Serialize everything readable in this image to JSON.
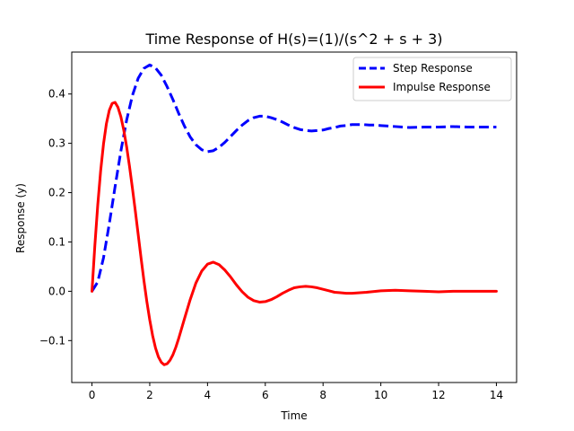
{
  "chart_data": {
    "type": "line",
    "title": "Time Response of H(s)=(1)/(s^2 + s + 3)",
    "xlabel": "Time",
    "ylabel": "Response (y)",
    "xlim": [
      -0.7,
      14.7
    ],
    "ylim": [
      -0.185,
      0.485
    ],
    "xticks": [
      0,
      2,
      4,
      6,
      8,
      10,
      12,
      14
    ],
    "xtick_labels": [
      "0",
      "2",
      "4",
      "6",
      "8",
      "10",
      "12",
      "14"
    ],
    "yticks": [
      -0.1,
      0.0,
      0.1,
      0.2,
      0.3,
      0.4
    ],
    "ytick_labels": [
      "−0.1",
      "0.0",
      "0.1",
      "0.2",
      "0.3",
      "0.4"
    ],
    "grid": false,
    "legend_position": "top-right",
    "series": [
      {
        "name": "Step Response",
        "color": "#0000ff",
        "style": "dashed",
        "x": [
          0.0,
          0.2,
          0.4,
          0.6,
          0.8,
          1.0,
          1.2,
          1.4,
          1.6,
          1.8,
          2.0,
          2.2,
          2.4,
          2.6,
          2.8,
          3.0,
          3.2,
          3.4,
          3.6,
          3.8,
          4.0,
          4.2,
          4.4,
          4.6,
          4.8,
          5.0,
          5.2,
          5.4,
          5.6,
          5.8,
          6.0,
          6.2,
          6.4,
          6.6,
          6.8,
          7.0,
          7.2,
          7.4,
          7.6,
          7.8,
          8.0,
          8.2,
          8.4,
          8.6,
          8.8,
          9.0,
          9.2,
          9.4,
          9.6,
          9.8,
          10.0,
          10.5,
          11.0,
          11.5,
          12.0,
          12.5,
          13.0,
          13.5,
          14.0
        ],
        "y": [
          0.0,
          0.019,
          0.068,
          0.137,
          0.212,
          0.284,
          0.347,
          0.397,
          0.432,
          0.452,
          0.459,
          0.453,
          0.438,
          0.415,
          0.389,
          0.361,
          0.335,
          0.313,
          0.297,
          0.287,
          0.283,
          0.285,
          0.292,
          0.302,
          0.314,
          0.326,
          0.337,
          0.346,
          0.352,
          0.355,
          0.355,
          0.352,
          0.348,
          0.343,
          0.337,
          0.332,
          0.328,
          0.326,
          0.325,
          0.326,
          0.327,
          0.33,
          0.332,
          0.335,
          0.336,
          0.338,
          0.338,
          0.338,
          0.337,
          0.337,
          0.336,
          0.334,
          0.332,
          0.333,
          0.333,
          0.334,
          0.333,
          0.333,
          0.333
        ]
      },
      {
        "name": "Impulse Response",
        "color": "#ff0000",
        "style": "solid",
        "x": [
          0.0,
          0.1,
          0.2,
          0.3,
          0.4,
          0.5,
          0.6,
          0.7,
          0.8,
          0.9,
          1.0,
          1.1,
          1.2,
          1.3,
          1.4,
          1.5,
          1.6,
          1.7,
          1.8,
          1.9,
          2.0,
          2.1,
          2.2,
          2.3,
          2.4,
          2.5,
          2.6,
          2.7,
          2.8,
          2.9,
          3.0,
          3.2,
          3.4,
          3.6,
          3.8,
          4.0,
          4.2,
          4.4,
          4.6,
          4.8,
          5.0,
          5.2,
          5.4,
          5.6,
          5.8,
          6.0,
          6.2,
          6.4,
          6.6,
          6.8,
          7.0,
          7.2,
          7.4,
          7.6,
          7.8,
          8.0,
          8.2,
          8.4,
          8.6,
          8.8,
          9.0,
          9.5,
          10.0,
          10.5,
          11.0,
          11.5,
          12.0,
          12.5,
          13.0,
          13.5,
          14.0
        ],
        "y": [
          0.0,
          0.093,
          0.175,
          0.244,
          0.299,
          0.34,
          0.367,
          0.381,
          0.383,
          0.373,
          0.354,
          0.327,
          0.293,
          0.253,
          0.209,
          0.163,
          0.115,
          0.067,
          0.021,
          -0.021,
          -0.058,
          -0.09,
          -0.115,
          -0.133,
          -0.144,
          -0.149,
          -0.147,
          -0.14,
          -0.129,
          -0.114,
          -0.096,
          -0.056,
          -0.017,
          0.017,
          0.041,
          0.055,
          0.059,
          0.054,
          0.043,
          0.029,
          0.013,
          -0.001,
          -0.012,
          -0.019,
          -0.022,
          -0.021,
          -0.017,
          -0.011,
          -0.004,
          0.002,
          0.007,
          0.009,
          0.01,
          0.009,
          0.007,
          0.004,
          0.001,
          -0.002,
          -0.003,
          -0.004,
          -0.004,
          -0.002,
          0.001,
          0.002,
          0.001,
          0.0,
          -0.001,
          0.0,
          0.0,
          0.0,
          0.0
        ]
      }
    ]
  }
}
